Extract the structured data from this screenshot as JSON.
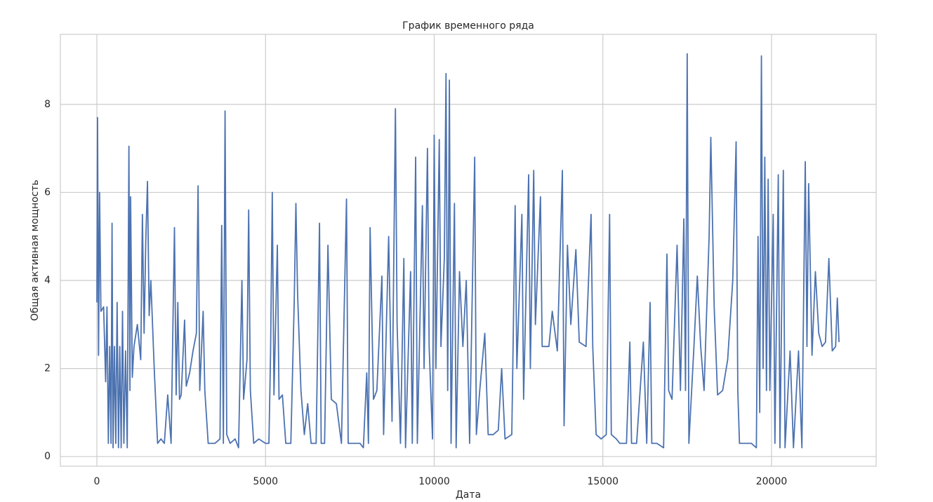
{
  "chart_data": {
    "type": "line",
    "title": "График временного ряда",
    "xlabel": "Дата",
    "ylabel": "Общая активная мощность",
    "x": [
      0,
      20,
      50,
      80,
      120,
      200,
      260,
      300,
      340,
      380,
      420,
      450,
      480,
      520,
      560,
      600,
      640,
      680,
      720,
      760,
      800,
      850,
      900,
      950,
      980,
      1000,
      1050,
      1100,
      1200,
      1300,
      1350,
      1400,
      1450,
      1500,
      1550,
      1600,
      1700,
      1800,
      1900,
      2000,
      2100,
      2200,
      2300,
      2350,
      2400,
      2450,
      2500,
      2600,
      2650,
      2750,
      2850,
      2950,
      3000,
      3050,
      3150,
      3200,
      3300,
      3500,
      3650,
      3700,
      3750,
      3800,
      3850,
      3950,
      4100,
      4200,
      4300,
      4350,
      4450,
      4500,
      4550,
      4650,
      4800,
      5000,
      5100,
      5150,
      5200,
      5250,
      5350,
      5400,
      5500,
      5600,
      5750,
      5850,
      5900,
      5950,
      6050,
      6150,
      6250,
      6350,
      6500,
      6600,
      6650,
      6750,
      6850,
      6950,
      7100,
      7250,
      7400,
      7450,
      7600,
      7800,
      7900,
      8000,
      8050,
      8100,
      8200,
      8300,
      8450,
      8500,
      8650,
      8750,
      8850,
      8900,
      9000,
      9100,
      9150,
      9300,
      9350,
      9450,
      9500,
      9650,
      9700,
      9800,
      9850,
      9950,
      10000,
      10050,
      10150,
      10200,
      10300,
      10350,
      10400,
      10450,
      10500,
      10600,
      10650,
      10750,
      10850,
      10950,
      11050,
      11200,
      11250,
      11350,
      11500,
      11600,
      11750,
      11900,
      12000,
      12100,
      12300,
      12400,
      12450,
      12600,
      12650,
      12800,
      12850,
      12950,
      13000,
      13150,
      13200,
      13400,
      13500,
      13650,
      13800,
      13850,
      13950,
      14050,
      14200,
      14300,
      14500,
      14650,
      14700,
      14800,
      14950,
      15100,
      15200,
      15250,
      15400,
      15500,
      15700,
      15800,
      15850,
      16000,
      16200,
      16300,
      16400,
      16450,
      16600,
      16800,
      16900,
      16950,
      17050,
      17200,
      17300,
      17400,
      17450,
      17500,
      17550,
      17700,
      17800,
      17900,
      18000,
      18150,
      18200,
      18300,
      18400,
      18550,
      18700,
      18850,
      18950,
      19000,
      19050,
      19200,
      19400,
      19550,
      19600,
      19650,
      19700,
      19750,
      19800,
      19850,
      19900,
      19950,
      20050,
      20100,
      20200,
      20250,
      20350,
      20400,
      20550,
      20650,
      20800,
      20900,
      21000,
      21050,
      21100,
      21200,
      21300,
      21400,
      21500,
      21600,
      21700,
      21800,
      21900,
      21950,
      22000
    ],
    "series": [
      {
        "color": "#4c72b0",
        "values": [
          3.5,
          7.7,
          2.3,
          6.0,
          3.3,
          3.4,
          1.7,
          3.4,
          0.3,
          2.5,
          0.3,
          5.3,
          0.2,
          2.5,
          0.3,
          3.5,
          0.2,
          2.5,
          0.2,
          3.3,
          0.3,
          2.4,
          0.2,
          7.05,
          1.5,
          5.9,
          1.8,
          2.5,
          3.0,
          2.2,
          5.5,
          2.8,
          4.9,
          6.25,
          3.2,
          4.0,
          2.0,
          0.3,
          0.4,
          0.3,
          1.4,
          0.3,
          5.2,
          1.4,
          3.5,
          1.3,
          1.4,
          3.1,
          1.6,
          1.9,
          2.4,
          2.8,
          6.15,
          1.5,
          3.3,
          1.5,
          0.3,
          0.3,
          0.4,
          5.25,
          0.3,
          7.85,
          0.5,
          0.3,
          0.4,
          0.2,
          4.0,
          1.3,
          2.2,
          5.6,
          1.5,
          0.3,
          0.4,
          0.3,
          0.3,
          2.4,
          6.0,
          1.4,
          4.8,
          1.3,
          1.4,
          0.3,
          0.3,
          3.5,
          5.75,
          3.7,
          1.5,
          0.5,
          1.2,
          0.3,
          0.3,
          5.3,
          0.3,
          0.3,
          4.8,
          1.3,
          1.2,
          0.3,
          5.85,
          0.3,
          0.3,
          0.3,
          0.2,
          1.9,
          0.3,
          5.2,
          1.3,
          1.5,
          4.1,
          0.5,
          5.0,
          0.8,
          7.9,
          3.0,
          0.3,
          4.5,
          0.2,
          4.2,
          0.3,
          6.8,
          0.3,
          5.7,
          2.0,
          7.0,
          2.5,
          0.4,
          7.3,
          2.0,
          7.2,
          2.5,
          4.5,
          8.7,
          1.5,
          8.55,
          0.3,
          5.75,
          0.2,
          4.2,
          2.5,
          4.0,
          0.3,
          6.8,
          0.5,
          1.5,
          2.8,
          0.5,
          0.5,
          0.6,
          2.0,
          0.4,
          0.5,
          5.7,
          2.0,
          5.5,
          1.3,
          6.4,
          2.0,
          6.5,
          3.0,
          5.9,
          2.5,
          2.5,
          3.3,
          2.4,
          6.5,
          0.7,
          4.8,
          3.0,
          4.7,
          2.6,
          2.5,
          5.5,
          2.5,
          0.5,
          0.4,
          0.5,
          5.5,
          0.5,
          0.4,
          0.3,
          0.3,
          2.6,
          0.3,
          0.3,
          2.6,
          0.3,
          3.5,
          0.3,
          0.3,
          0.2,
          4.6,
          1.5,
          1.3,
          4.8,
          1.5,
          5.4,
          1.5,
          9.15,
          0.3,
          2.5,
          4.1,
          2.5,
          1.5,
          5.0,
          7.25,
          3.4,
          1.4,
          1.5,
          2.2,
          4.0,
          7.15,
          1.5,
          0.3,
          0.3,
          0.3,
          0.2,
          5.0,
          1.0,
          9.1,
          2.0,
          6.8,
          1.5,
          6.3,
          1.5,
          5.5,
          0.3,
          6.4,
          0.2,
          6.5,
          0.2,
          2.4,
          0.2,
          2.4,
          0.2,
          6.7,
          2.5,
          6.2,
          2.3,
          4.2,
          2.8,
          2.5,
          2.6,
          4.5,
          2.4,
          2.5,
          3.6,
          2.6
        ]
      }
    ],
    "xlim": [
      -1082,
      23101
    ],
    "ylim": [
      -0.22,
      9.59
    ],
    "xticks": [
      0,
      5000,
      10000,
      15000,
      20000
    ],
    "yticks": [
      0,
      2,
      4,
      6,
      8
    ],
    "grid": true
  }
}
